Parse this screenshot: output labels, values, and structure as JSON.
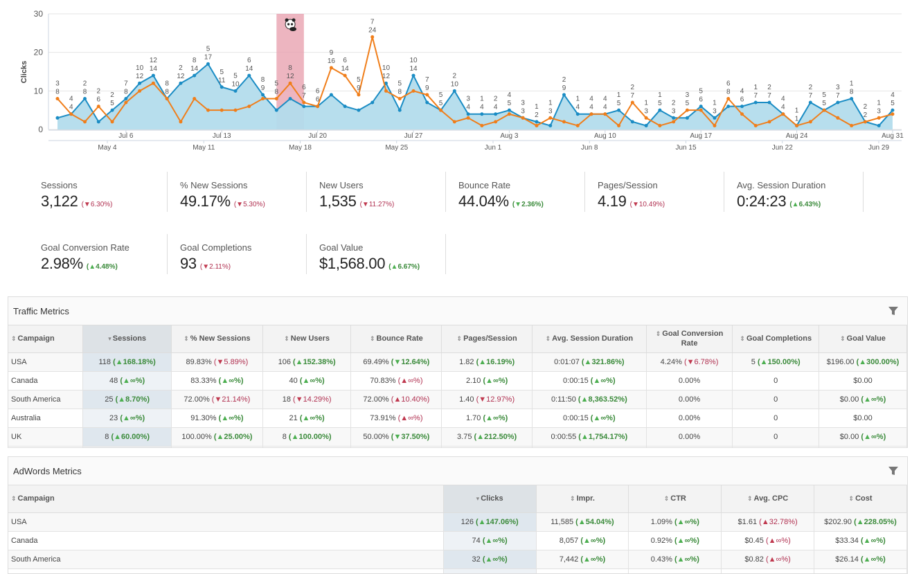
{
  "chart_data": {
    "type": "area-line",
    "ylabel": "Clicks",
    "ylim": [
      0,
      30
    ],
    "yticks": [
      0,
      10,
      20,
      30
    ],
    "grid": true,
    "x": [
      "Jul 1",
      "Jul 2",
      "Jul 3",
      "Jul 4",
      "Jul 5",
      "Jul 6",
      "Jul 7",
      "Jul 8",
      "Jul 9",
      "Jul 10",
      "Jul 11",
      "Jul 12",
      "Jul 13",
      "Jul 14",
      "Jul 15",
      "Jul 16",
      "Jul 17",
      "Jul 18",
      "Jul 19",
      "Jul 20",
      "Jul 21",
      "Jul 22",
      "Jul 23",
      "Jul 24",
      "Jul 25",
      "Jul 26",
      "Jul 27",
      "Jul 28",
      "Jul 29",
      "Jul 30",
      "Jul 31",
      "Aug 1",
      "Aug 2",
      "Aug 3",
      "Aug 4",
      "Aug 5",
      "Aug 6",
      "Aug 7",
      "Aug 8",
      "Aug 9",
      "Aug 10",
      "Aug 11",
      "Aug 12",
      "Aug 13",
      "Aug 14",
      "Aug 15",
      "Aug 16",
      "Aug 17",
      "Aug 18",
      "Aug 19",
      "Aug 20",
      "Aug 21",
      "Aug 22",
      "Aug 23",
      "Aug 24",
      "Aug 25",
      "Aug 26",
      "Aug 27",
      "Aug 28",
      "Aug 29",
      "Aug 30",
      "Aug 31"
    ],
    "xticks_current": [
      "Jul 6",
      "Jul 13",
      "Jul 20",
      "Jul 27",
      "Aug 3",
      "Aug 10",
      "Aug 17",
      "Aug 24",
      "Aug 31"
    ],
    "xticks_previous": [
      "May 4",
      "May 11",
      "May 18",
      "May 25",
      "Jun 1",
      "Jun 8",
      "Jun 15",
      "Jun 22",
      "Jun 29"
    ],
    "series": [
      {
        "color": "#1a8cc4",
        "fill": "#b3dcec",
        "values": [
          3,
          4,
          8,
          2,
          5,
          8,
          12,
          14,
          8,
          12,
          14,
          17,
          11,
          10,
          14,
          9,
          5,
          8,
          6,
          6,
          9,
          6,
          5,
          7,
          12,
          5,
          14,
          7,
          5,
          10,
          4,
          4,
          4,
          5,
          3,
          2,
          1,
          9,
          4,
          4,
          4,
          5,
          2,
          1,
          5,
          3,
          3,
          6,
          3,
          6,
          6,
          7,
          7,
          4,
          1,
          7,
          5,
          7,
          8,
          2,
          1,
          5
        ]
      },
      {
        "color": "#f07e1a",
        "values": [
          8,
          4,
          2,
          6,
          2,
          7,
          10,
          12,
          8,
          2,
          8,
          5,
          5,
          5,
          6,
          8,
          8,
          12,
          7,
          6,
          16,
          14,
          9,
          24,
          10,
          8,
          10,
          9,
          5,
          2,
          3,
          1,
          2,
          4,
          3,
          1,
          3,
          2,
          1,
          4,
          4,
          1,
          7,
          3,
          1,
          2,
          5,
          5,
          1,
          8,
          4,
          1,
          2,
          4,
          1,
          2,
          5,
          3,
          1,
          2,
          3,
          4
        ]
      }
    ],
    "annotations": [
      {
        "from": "Jul 17",
        "to": "Jul 19",
        "color": "#e8a3b0",
        "icon": "panda-icon"
      }
    ]
  },
  "kpis": [
    {
      "label": "Sessions",
      "value": "3,122",
      "delta": "6.30%",
      "dir": "down",
      "good": false
    },
    {
      "label": "% New Sessions",
      "value": "49.17%",
      "delta": "5.30%",
      "dir": "down",
      "good": false
    },
    {
      "label": "New Users",
      "value": "1,535",
      "delta": "11.27%",
      "dir": "down",
      "good": false
    },
    {
      "label": "Bounce Rate",
      "value": "44.04%",
      "delta": "2.36%",
      "dir": "down",
      "good": true
    },
    {
      "label": "Pages/Session",
      "value": "4.19",
      "delta": "10.49%",
      "dir": "down",
      "good": false
    },
    {
      "label": "Avg. Session Duration",
      "value": "0:24:23",
      "delta": "6.43%",
      "dir": "up",
      "good": true
    },
    {
      "label": "Goal Conversion Rate",
      "value": "2.98%",
      "delta": "4.48%",
      "dir": "up",
      "good": true
    },
    {
      "label": "Goal Completions",
      "value": "93",
      "delta": "2.11%",
      "dir": "down",
      "good": false
    },
    {
      "label": "Goal Value",
      "value": "$1,568.00",
      "delta": "6.67%",
      "dir": "up",
      "good": true
    }
  ],
  "traffic": {
    "title": "Traffic Metrics",
    "sorted_col": 1,
    "columns": [
      {
        "label": "Campaign",
        "sort": "both"
      },
      {
        "label": "Sessions",
        "sort": "desc"
      },
      {
        "label": "% New Sessions",
        "sort": "both"
      },
      {
        "label": "New Users",
        "sort": "both"
      },
      {
        "label": "Bounce Rate",
        "sort": "both"
      },
      {
        "label": "Pages/Session",
        "sort": "both"
      },
      {
        "label": "Avg. Session Duration",
        "sort": "both"
      },
      {
        "label": "Goal Conversion Rate",
        "sort": "both"
      },
      {
        "label": "Goal Completions",
        "sort": "both"
      },
      {
        "label": "Goal Value",
        "sort": "both"
      }
    ],
    "rows": [
      [
        {
          "v": "USA"
        },
        {
          "v": "118",
          "d": "168.18%",
          "dir": "up",
          "good": true
        },
        {
          "v": "89.83%",
          "d": "5.89%",
          "dir": "down",
          "good": false
        },
        {
          "v": "106",
          "d": "152.38%",
          "dir": "up",
          "good": true
        },
        {
          "v": "69.49%",
          "d": "12.64%",
          "dir": "down",
          "good": true
        },
        {
          "v": "1.82",
          "d": "16.19%",
          "dir": "up",
          "good": true
        },
        {
          "v": "0:01:07",
          "d": "321.86%",
          "dir": "up",
          "good": true
        },
        {
          "v": "4.24%",
          "d": "6.78%",
          "dir": "down",
          "good": false
        },
        {
          "v": "5",
          "d": "150.00%",
          "dir": "up",
          "good": true
        },
        {
          "v": "$196.00",
          "d": "300.00%",
          "dir": "up",
          "good": true
        }
      ],
      [
        {
          "v": "Canada"
        },
        {
          "v": "48",
          "d": "∞%",
          "dir": "up",
          "good": true
        },
        {
          "v": "83.33%",
          "d": "∞%",
          "dir": "up",
          "good": true
        },
        {
          "v": "40",
          "d": "∞%",
          "dir": "up",
          "good": true
        },
        {
          "v": "70.83%",
          "d": "∞%",
          "dir": "up",
          "good": false
        },
        {
          "v": "2.10",
          "d": "∞%",
          "dir": "up",
          "good": true
        },
        {
          "v": "0:00:15",
          "d": "∞%",
          "dir": "up",
          "good": true
        },
        {
          "v": "0.00%"
        },
        {
          "v": "0"
        },
        {
          "v": "$0.00"
        }
      ],
      [
        {
          "v": "South America"
        },
        {
          "v": "25",
          "d": "8.70%",
          "dir": "up",
          "good": true
        },
        {
          "v": "72.00%",
          "d": "21.14%",
          "dir": "down",
          "good": false
        },
        {
          "v": "18",
          "d": "14.29%",
          "dir": "down",
          "good": false
        },
        {
          "v": "72.00%",
          "d": "10.40%",
          "dir": "up",
          "good": false
        },
        {
          "v": "1.40",
          "d": "12.97%",
          "dir": "down",
          "good": false
        },
        {
          "v": "0:11:50",
          "d": "8,363.52%",
          "dir": "up",
          "good": true
        },
        {
          "v": "0.00%"
        },
        {
          "v": "0"
        },
        {
          "v": "$0.00",
          "d": "∞%",
          "dir": "up",
          "good": true
        }
      ],
      [
        {
          "v": "Australia"
        },
        {
          "v": "23",
          "d": "∞%",
          "dir": "up",
          "good": true
        },
        {
          "v": "91.30%",
          "d": "∞%",
          "dir": "up",
          "good": true
        },
        {
          "v": "21",
          "d": "∞%",
          "dir": "up",
          "good": true
        },
        {
          "v": "73.91%",
          "d": "∞%",
          "dir": "up",
          "good": false
        },
        {
          "v": "1.70",
          "d": "∞%",
          "dir": "up",
          "good": true
        },
        {
          "v": "0:00:15",
          "d": "∞%",
          "dir": "up",
          "good": true
        },
        {
          "v": "0.00%"
        },
        {
          "v": "0"
        },
        {
          "v": "$0.00"
        }
      ],
      [
        {
          "v": "UK"
        },
        {
          "v": "8",
          "d": "60.00%",
          "dir": "up",
          "good": true
        },
        {
          "v": "100.00%",
          "d": "25.00%",
          "dir": "up",
          "good": true
        },
        {
          "v": "8",
          "d": "100.00%",
          "dir": "up",
          "good": true
        },
        {
          "v": "50.00%",
          "d": "37.50%",
          "dir": "down",
          "good": true
        },
        {
          "v": "3.75",
          "d": "212.50%",
          "dir": "up",
          "good": true
        },
        {
          "v": "0:00:55",
          "d": "1,754.17%",
          "dir": "up",
          "good": true
        },
        {
          "v": "0.00%"
        },
        {
          "v": "0"
        },
        {
          "v": "$0.00",
          "d": "∞%",
          "dir": "up",
          "good": true
        }
      ]
    ]
  },
  "adwords": {
    "title": "AdWords Metrics",
    "sorted_col": 1,
    "columns": [
      {
        "label": "Campaign",
        "sort": "both"
      },
      {
        "label": "Clicks",
        "sort": "desc"
      },
      {
        "label": "Impr.",
        "sort": "both"
      },
      {
        "label": "CTR",
        "sort": "both"
      },
      {
        "label": "Avg. CPC",
        "sort": "both"
      },
      {
        "label": "Cost",
        "sort": "both"
      }
    ],
    "rows": [
      [
        {
          "v": "USA"
        },
        {
          "v": "126",
          "d": "147.06%",
          "dir": "up",
          "good": true
        },
        {
          "v": "11,585",
          "d": "54.04%",
          "dir": "up",
          "good": true
        },
        {
          "v": "1.09%",
          "d": "∞%",
          "dir": "up",
          "good": true
        },
        {
          "v": "$1.61",
          "d": "32.78%",
          "dir": "up",
          "good": false
        },
        {
          "v": "$202.90",
          "d": "228.05%",
          "dir": "up",
          "good": true
        }
      ],
      [
        {
          "v": "Canada"
        },
        {
          "v": "74",
          "d": "∞%",
          "dir": "up",
          "good": true
        },
        {
          "v": "8,057",
          "d": "∞%",
          "dir": "up",
          "good": true
        },
        {
          "v": "0.92%",
          "d": "∞%",
          "dir": "up",
          "good": true
        },
        {
          "v": "$0.45",
          "d": "∞%",
          "dir": "up",
          "good": false
        },
        {
          "v": "$33.34",
          "d": "∞%",
          "dir": "up",
          "good": true
        }
      ],
      [
        {
          "v": "South America"
        },
        {
          "v": "32",
          "d": "∞%",
          "dir": "up",
          "good": true
        },
        {
          "v": "7,442",
          "d": "∞%",
          "dir": "up",
          "good": true
        },
        {
          "v": "0.43%",
          "d": "∞%",
          "dir": "up",
          "good": true
        },
        {
          "v": "$0.82",
          "d": "∞%",
          "dir": "up",
          "good": false
        },
        {
          "v": "$26.14",
          "d": "∞%",
          "dir": "up",
          "good": true
        }
      ]
    ]
  }
}
